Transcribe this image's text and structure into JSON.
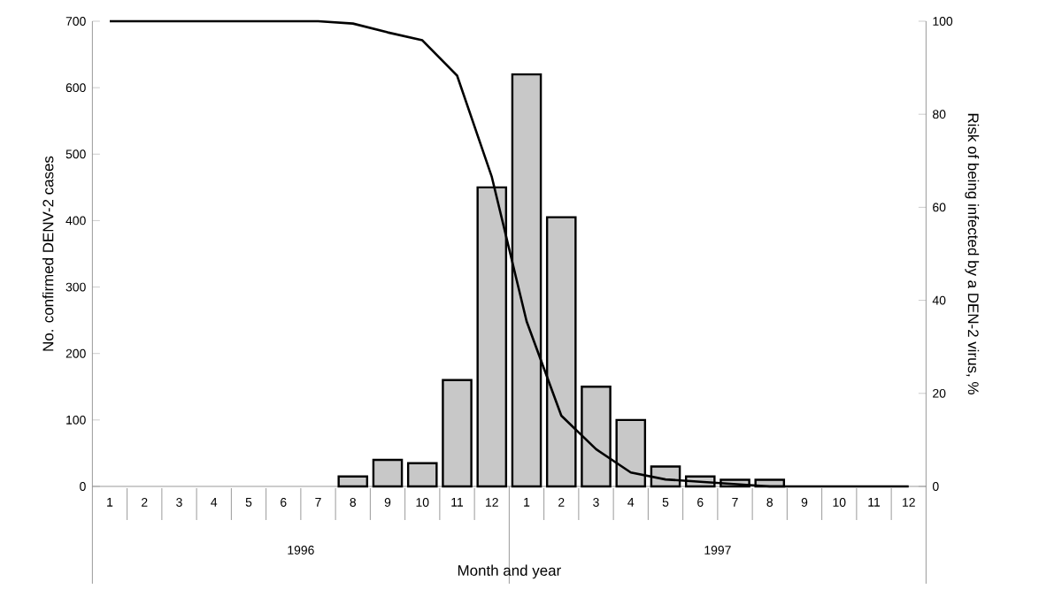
{
  "chart_data": {
    "type": "bar",
    "categories": [
      "1",
      "2",
      "3",
      "4",
      "5",
      "6",
      "7",
      "8",
      "9",
      "10",
      "11",
      "12",
      "1",
      "2",
      "3",
      "4",
      "5",
      "6",
      "7",
      "8",
      "9",
      "10",
      "11",
      "12"
    ],
    "series": [
      {
        "color": "#c8c8c8",
        "values": [
          null,
          null,
          null,
          null,
          null,
          null,
          null,
          15,
          40,
          35,
          160,
          450,
          620,
          405,
          150,
          100,
          30,
          15,
          10,
          10,
          null,
          null,
          null,
          null
        ]
      },
      {
        "type": "line",
        "axis": "y2",
        "color": "#000000",
        "values": [
          100,
          100,
          100,
          100,
          100,
          100,
          100,
          99.5,
          97.6,
          95.9,
          88.3,
          66.5,
          35.5,
          15.2,
          8,
          3,
          1.5,
          1,
          0.5,
          0,
          0,
          0,
          0,
          0
        ]
      }
    ],
    "xlabel": "Month and year",
    "ylabel": "No. confirmed DENV-2 cases",
    "y2label": "Risk of being infected by a DEN-2 virus, %",
    "ylim": [
      0,
      700
    ],
    "yticks": [
      0,
      100,
      200,
      300,
      400,
      500,
      600,
      700
    ],
    "y2lim": [
      0,
      100
    ],
    "y2ticks": [
      0,
      20,
      40,
      60,
      80,
      100
    ],
    "annotations": [
      "1996",
      "1997"
    ]
  }
}
